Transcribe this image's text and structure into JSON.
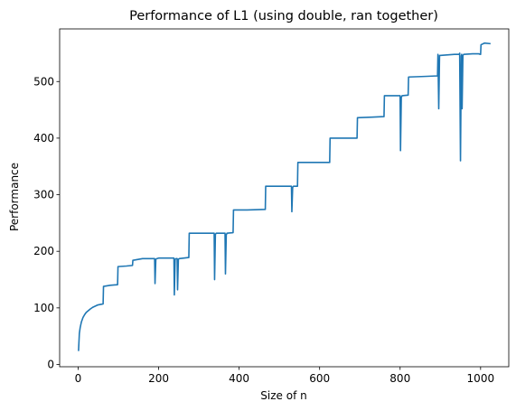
{
  "chart_data": {
    "type": "line",
    "title": "Performance of L1 (using double, ran together)",
    "xlabel": "Size of n",
    "ylabel": "Performance",
    "xlim": [
      -46,
      1070
    ],
    "ylim": [
      -4,
      593
    ],
    "xticks": [
      0,
      200,
      400,
      600,
      800,
      1000
    ],
    "yticks": [
      0,
      100,
      200,
      300,
      400,
      500
    ],
    "grid": false,
    "legend": "none",
    "colors": {
      "line": "#1f77b4",
      "axes": "#000000",
      "background": "#ffffff"
    },
    "series": [
      {
        "x": [
          1,
          3,
          5,
          8,
          12,
          16,
          20,
          25,
          30,
          36,
          42,
          48,
          55,
          62,
          63,
          80,
          98,
          99,
          120,
          135,
          136,
          160,
          190,
          191,
          193,
          195,
          200,
          220,
          238,
          239,
          241,
          243,
          246,
          247,
          249,
          251,
          275,
          276,
          300,
          338,
          339,
          341,
          343,
          365,
          366,
          368,
          370,
          385,
          386,
          420,
          465,
          466,
          500,
          530,
          531,
          533,
          535,
          545,
          546,
          580,
          625,
          626,
          660,
          693,
          694,
          730,
          760,
          761,
          790,
          800,
          801,
          803,
          805,
          820,
          821,
          860,
          893,
          894,
          896,
          898,
          935,
          947,
          948,
          950,
          952,
          953,
          954,
          956,
          958,
          980,
          995,
          1000,
          1001,
          1010,
          1023
        ],
        "y": [
          25,
          55,
          65,
          75,
          83,
          88,
          92,
          95,
          98,
          101,
          103,
          105,
          106,
          107,
          138,
          140,
          141,
          173,
          174,
          175,
          184,
          187,
          187,
          143,
          186,
          187,
          188,
          188,
          188,
          123,
          186,
          187,
          187,
          132,
          186,
          187,
          189,
          232,
          232,
          232,
          150,
          230,
          232,
          232,
          160,
          229,
          232,
          233,
          273,
          273,
          274,
          315,
          315,
          315,
          270,
          313,
          315,
          315,
          357,
          357,
          357,
          400,
          400,
          400,
          436,
          437,
          438,
          475,
          475,
          475,
          378,
          472,
          475,
          476,
          508,
          509,
          510,
          548,
          452,
          546,
          548,
          548,
          550,
          360,
          545,
          548,
          452,
          546,
          548,
          549,
          549,
          548,
          565,
          568,
          567
        ]
      }
    ]
  }
}
